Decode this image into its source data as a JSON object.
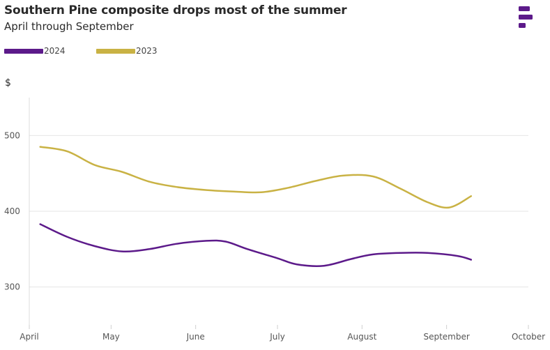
{
  "title": "Southern Pine composite drops most of the summer",
  "subtitle": "April through September",
  "unit_label": "$",
  "legend": [
    {
      "label": "2024",
      "color": "#5c1a8a"
    },
    {
      "label": "2023",
      "color": "#c9b244"
    }
  ],
  "logo_icon": "brand-logo-icon",
  "chart_data": {
    "type": "line",
    "title": "Southern Pine composite drops most of the summer",
    "subtitle": "April through September",
    "xlabel": "",
    "ylabel": "$",
    "ylim": [
      250,
      550
    ],
    "yticks": [
      300,
      400,
      500
    ],
    "xticks": [
      "April",
      "May",
      "June",
      "July",
      "August",
      "September",
      "October"
    ],
    "grid": true,
    "legend_position": "top-left",
    "series": [
      {
        "name": "2024",
        "color": "#5c1a8a",
        "points": [
          {
            "x": "2024-04-05",
            "y": 383
          },
          {
            "x": "2024-04-15",
            "y": 366
          },
          {
            "x": "2024-04-25",
            "y": 354
          },
          {
            "x": "2024-05-05",
            "y": 347
          },
          {
            "x": "2024-05-15",
            "y": 350
          },
          {
            "x": "2024-05-25",
            "y": 357
          },
          {
            "x": "2024-06-05",
            "y": 361
          },
          {
            "x": "2024-06-12",
            "y": 360
          },
          {
            "x": "2024-06-20",
            "y": 350
          },
          {
            "x": "2024-07-01",
            "y": 338
          },
          {
            "x": "2024-07-08",
            "y": 330
          },
          {
            "x": "2024-07-18",
            "y": 328
          },
          {
            "x": "2024-07-28",
            "y": 337
          },
          {
            "x": "2024-08-05",
            "y": 343
          },
          {
            "x": "2024-08-15",
            "y": 345
          },
          {
            "x": "2024-08-25",
            "y": 345
          },
          {
            "x": "2024-09-05",
            "y": 341
          },
          {
            "x": "2024-09-10",
            "y": 336
          }
        ]
      },
      {
        "name": "2023",
        "color": "#c9b244",
        "points": [
          {
            "x": "2023-04-05",
            "y": 485
          },
          {
            "x": "2023-04-15",
            "y": 479
          },
          {
            "x": "2023-04-25",
            "y": 461
          },
          {
            "x": "2023-05-05",
            "y": 452
          },
          {
            "x": "2023-05-15",
            "y": 439
          },
          {
            "x": "2023-05-25",
            "y": 432
          },
          {
            "x": "2023-06-05",
            "y": 428
          },
          {
            "x": "2023-06-15",
            "y": 426
          },
          {
            "x": "2023-06-25",
            "y": 425
          },
          {
            "x": "2023-07-05",
            "y": 431
          },
          {
            "x": "2023-07-15",
            "y": 440
          },
          {
            "x": "2023-07-25",
            "y": 447
          },
          {
            "x": "2023-08-05",
            "y": 446
          },
          {
            "x": "2023-08-15",
            "y": 430
          },
          {
            "x": "2023-08-25",
            "y": 412
          },
          {
            "x": "2023-09-02",
            "y": 405
          },
          {
            "x": "2023-09-10",
            "y": 420
          }
        ]
      }
    ]
  }
}
